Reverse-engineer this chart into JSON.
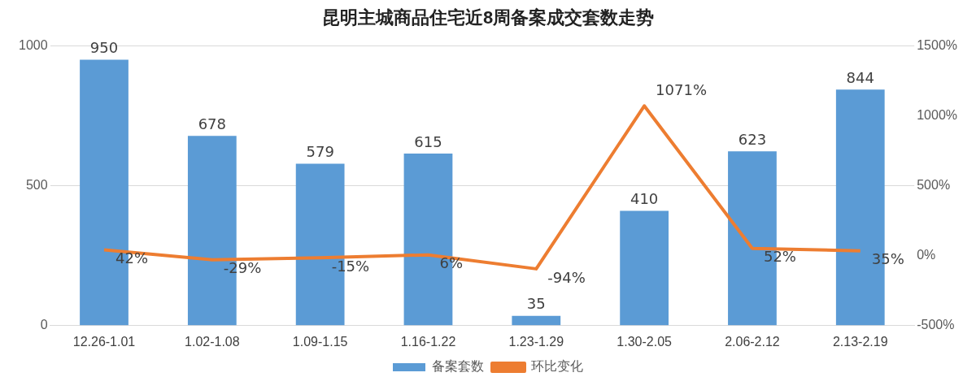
{
  "chart_data": {
    "type": "bar",
    "title": "昆明主城商品住宅近8周备案成交套数走势",
    "categories": [
      "12.26-1.01",
      "1.02-1.08",
      "1.09-1.15",
      "1.16-1.22",
      "1.23-1.29",
      "1.30-2.05",
      "2.06-2.12",
      "2.13-2.19"
    ],
    "series": [
      {
        "name": "备案套数",
        "color": "#5b9bd5",
        "values": [
          950,
          678,
          579,
          615,
          35,
          410,
          623,
          844
        ],
        "value_labels": [
          "950",
          "678",
          "579",
          "615",
          "35",
          "410",
          "623",
          "844"
        ]
      },
      {
        "name": "环比变化",
        "type": "line",
        "axis": "y2",
        "color": "#ed7d31",
        "values": [
          42,
          -29,
          -15,
          6,
          -94,
          1071,
          52,
          35
        ],
        "value_labels": [
          "42%",
          "-29%",
          "-15%",
          "6%",
          "-94%",
          "1071%",
          "52%",
          "35%"
        ]
      }
    ],
    "ylim": [
      0,
      1000
    ],
    "yticks": [
      0,
      500,
      1000
    ],
    "y2lim": [
      -500,
      1500
    ],
    "y2ticks": [
      {
        "value": -500,
        "label": "-500%"
      },
      {
        "value": 0,
        "label": "0%"
      },
      {
        "value": 500,
        "label": "500%"
      },
      {
        "value": 1000,
        "label": "1000%"
      },
      {
        "value": 1500,
        "label": "1500%"
      }
    ],
    "grid": "y",
    "legend": "bottom",
    "marker": "none"
  }
}
